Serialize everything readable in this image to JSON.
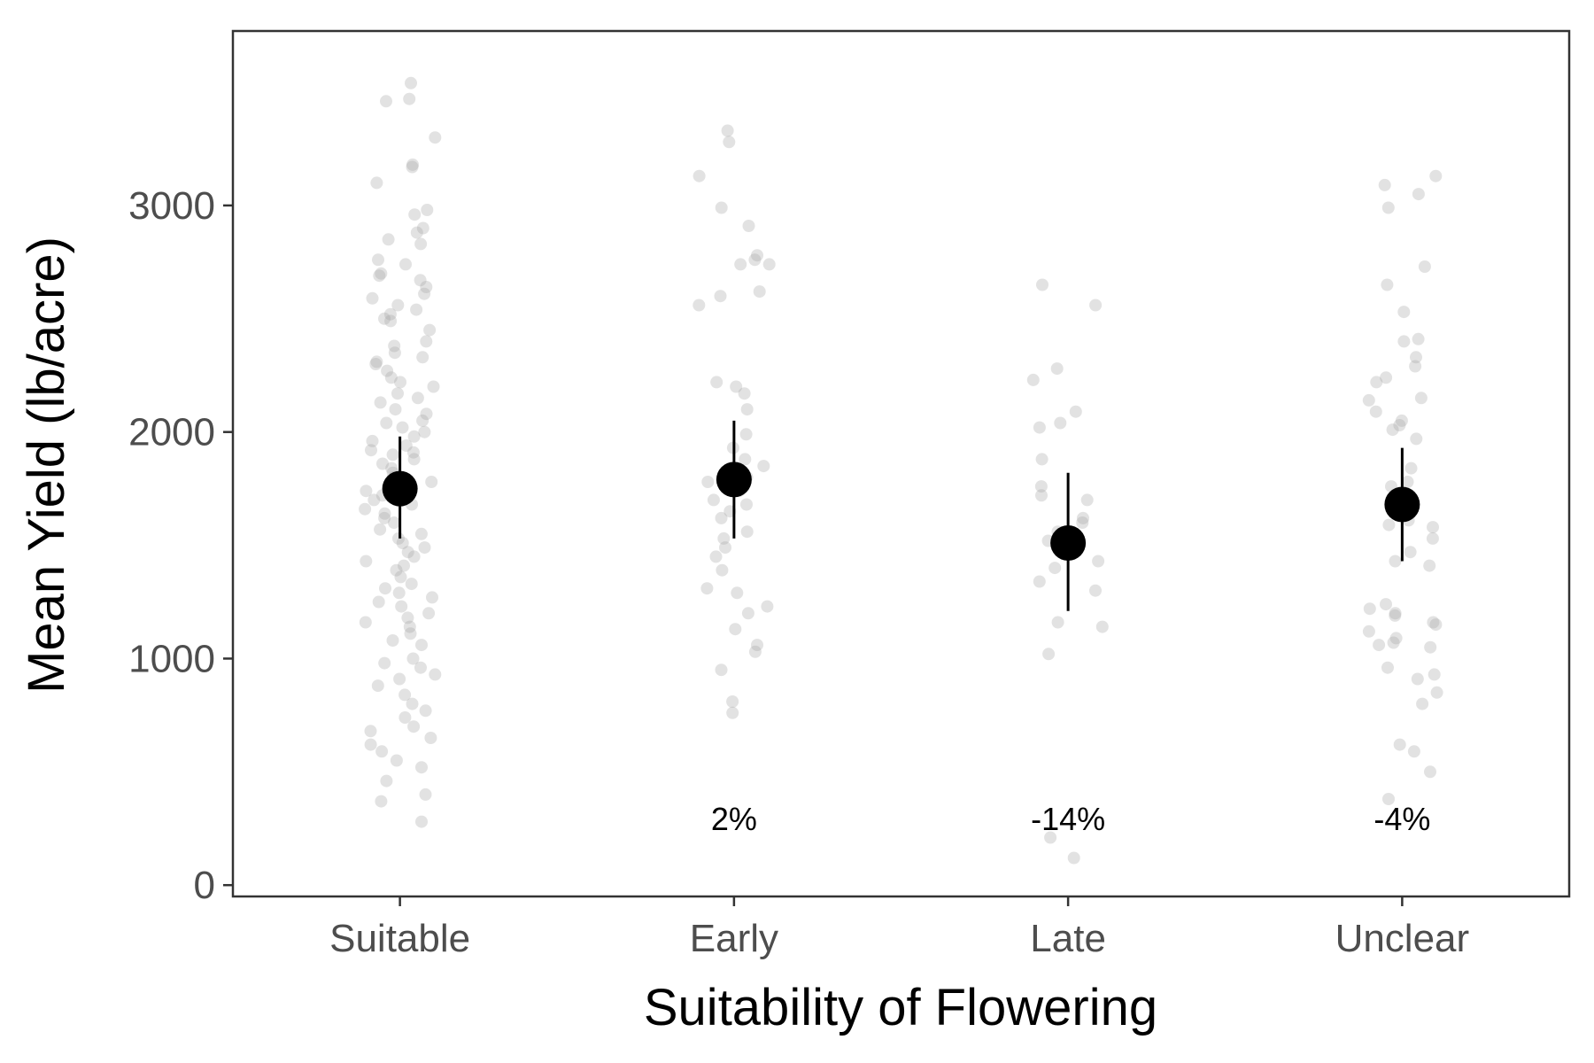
{
  "chart_data": {
    "type": "scatter",
    "title": "",
    "xlabel": "Suitability of Flowering",
    "ylabel": "Mean Yield (lb/acre)",
    "categories": [
      "Suitable",
      "Early",
      "Late",
      "Unclear"
    ],
    "yticks": [
      0,
      1000,
      2000,
      3000
    ],
    "ytick_labels": [
      "0",
      "1000",
      "2000",
      "3000"
    ],
    "ylim": [
      -50,
      3770
    ],
    "grid": false,
    "legend": "none",
    "colors": {
      "points": "#9e9e9e",
      "summary": "#000000",
      "frame": "#333333"
    },
    "summary": [
      {
        "category": "Suitable",
        "mean": 1750,
        "lower": 1530,
        "upper": 1980,
        "annotation": ""
      },
      {
        "category": "Early",
        "mean": 1790,
        "lower": 1530,
        "upper": 2050,
        "annotation": "2%"
      },
      {
        "category": "Late",
        "mean": 1510,
        "lower": 1210,
        "upper": 1820,
        "annotation": "-14%"
      },
      {
        "category": "Unclear",
        "mean": 1680,
        "lower": 1430,
        "upper": 1930,
        "annotation": "-4%"
      }
    ],
    "annotation_y": 290,
    "points": {
      "Suitable": [
        3540,
        3460,
        3470,
        3300,
        3180,
        3170,
        3100,
        2980,
        2960,
        2900,
        2880,
        2850,
        2830,
        2760,
        2740,
        2700,
        2690,
        2670,
        2640,
        2610,
        2590,
        2560,
        2540,
        2520,
        2500,
        2490,
        2450,
        2400,
        2380,
        2350,
        2330,
        2310,
        2300,
        2270,
        2240,
        2220,
        2200,
        2170,
        2150,
        2130,
        2100,
        2080,
        2050,
        2040,
        2020,
        2000,
        1980,
        1960,
        1940,
        1920,
        1910,
        1900,
        1880,
        1860,
        1840,
        1820,
        1800,
        1780,
        1760,
        1740,
        1720,
        1700,
        1680,
        1660,
        1640,
        1620,
        1600,
        1570,
        1550,
        1530,
        1510,
        1490,
        1470,
        1450,
        1430,
        1410,
        1390,
        1360,
        1330,
        1310,
        1290,
        1270,
        1250,
        1230,
        1200,
        1180,
        1160,
        1140,
        1110,
        1080,
        1060,
        1000,
        980,
        960,
        930,
        910,
        880,
        840,
        800,
        770,
        740,
        700,
        680,
        650,
        620,
        590,
        550,
        520,
        460,
        400,
        370,
        280
      ],
      "Early": [
        3330,
        3280,
        3130,
        2990,
        2910,
        2780,
        2760,
        2740,
        2740,
        2620,
        2600,
        2560,
        2220,
        2200,
        2170,
        2100,
        1990,
        1930,
        1880,
        1850,
        1800,
        1780,
        1740,
        1700,
        1680,
        1650,
        1620,
        1560,
        1530,
        1490,
        1450,
        1390,
        1310,
        1290,
        1230,
        1200,
        1130,
        1060,
        1030,
        950,
        810,
        760
      ],
      "Late": [
        2650,
        2560,
        2280,
        2230,
        2090,
        2040,
        2020,
        1880,
        1760,
        1720,
        1700,
        1620,
        1600,
        1560,
        1520,
        1500,
        1430,
        1400,
        1340,
        1300,
        1160,
        1140,
        1020,
        210,
        120
      ],
      "Unclear": [
        3130,
        3090,
        3050,
        2990,
        2730,
        2650,
        2530,
        2410,
        2400,
        2330,
        2290,
        2240,
        2220,
        2150,
        2140,
        2090,
        2050,
        2030,
        2010,
        1970,
        1840,
        1780,
        1760,
        1720,
        1660,
        1610,
        1590,
        1580,
        1530,
        1470,
        1430,
        1410,
        1240,
        1220,
        1200,
        1190,
        1160,
        1150,
        1120,
        1090,
        1070,
        1060,
        1050,
        960,
        930,
        910,
        850,
        800,
        620,
        590,
        500,
        380
      ]
    }
  }
}
